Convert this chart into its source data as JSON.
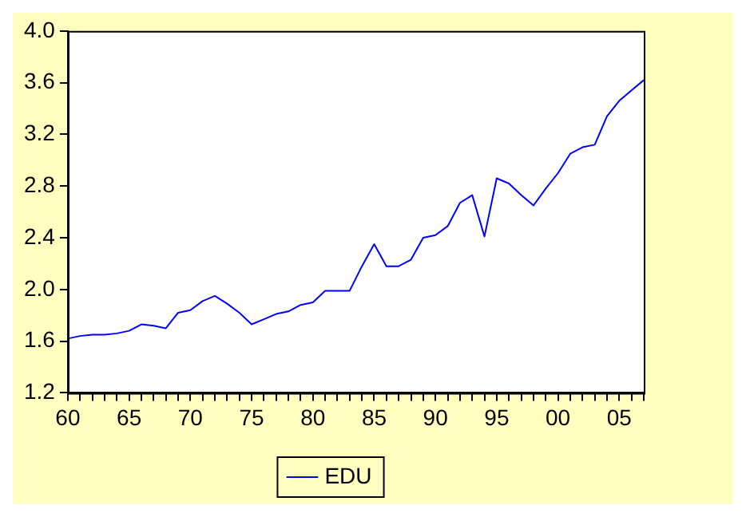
{
  "chart_data": {
    "type": "line",
    "x": [
      1960,
      1961,
      1962,
      1963,
      1964,
      1965,
      1966,
      1967,
      1968,
      1969,
      1970,
      1971,
      1972,
      1973,
      1974,
      1975,
      1976,
      1977,
      1978,
      1979,
      1980,
      1981,
      1982,
      1983,
      1984,
      1985,
      1986,
      1987,
      1988,
      1989,
      1990,
      1991,
      1992,
      1993,
      1994,
      1995,
      1996,
      1997,
      1998,
      1999,
      2000,
      2001,
      2002,
      2003,
      2004,
      2005,
      2006,
      2007
    ],
    "series": [
      {
        "name": "EDU",
        "color": "#0000ff",
        "values": [
          1.62,
          1.64,
          1.65,
          1.65,
          1.66,
          1.68,
          1.73,
          1.72,
          1.7,
          1.82,
          1.84,
          1.91,
          1.95,
          1.89,
          1.82,
          1.73,
          1.77,
          1.81,
          1.83,
          1.88,
          1.9,
          1.99,
          1.99,
          1.99,
          2.18,
          2.35,
          2.18,
          2.18,
          2.23,
          2.4,
          2.42,
          2.49,
          2.67,
          2.73,
          2.41,
          2.86,
          2.82,
          2.73,
          2.65,
          2.78,
          2.9,
          3.05,
          3.1,
          3.12,
          3.34,
          3.46,
          3.54,
          3.62
        ]
      }
    ],
    "xlim": [
      1960,
      2007
    ],
    "xticks": [
      {
        "value": 1960,
        "label": "60"
      },
      {
        "value": 1961,
        "label": null
      },
      {
        "value": 1962,
        "label": null
      },
      {
        "value": 1963,
        "label": null
      },
      {
        "value": 1964,
        "label": null
      },
      {
        "value": 1965,
        "label": "65"
      },
      {
        "value": 1966,
        "label": null
      },
      {
        "value": 1967,
        "label": null
      },
      {
        "value": 1968,
        "label": null
      },
      {
        "value": 1969,
        "label": null
      },
      {
        "value": 1970,
        "label": "70"
      },
      {
        "value": 1971,
        "label": null
      },
      {
        "value": 1972,
        "label": null
      },
      {
        "value": 1973,
        "label": null
      },
      {
        "value": 1974,
        "label": null
      },
      {
        "value": 1975,
        "label": "75"
      },
      {
        "value": 1976,
        "label": null
      },
      {
        "value": 1977,
        "label": null
      },
      {
        "value": 1978,
        "label": null
      },
      {
        "value": 1979,
        "label": null
      },
      {
        "value": 1980,
        "label": "80"
      },
      {
        "value": 1981,
        "label": null
      },
      {
        "value": 1982,
        "label": null
      },
      {
        "value": 1983,
        "label": null
      },
      {
        "value": 1984,
        "label": null
      },
      {
        "value": 1985,
        "label": "85"
      },
      {
        "value": 1986,
        "label": null
      },
      {
        "value": 1987,
        "label": null
      },
      {
        "value": 1988,
        "label": null
      },
      {
        "value": 1989,
        "label": null
      },
      {
        "value": 1990,
        "label": "90"
      },
      {
        "value": 1991,
        "label": null
      },
      {
        "value": 1992,
        "label": null
      },
      {
        "value": 1993,
        "label": null
      },
      {
        "value": 1994,
        "label": null
      },
      {
        "value": 1995,
        "label": "95"
      },
      {
        "value": 1996,
        "label": null
      },
      {
        "value": 1997,
        "label": null
      },
      {
        "value": 1998,
        "label": null
      },
      {
        "value": 1999,
        "label": null
      },
      {
        "value": 2000,
        "label": "00"
      },
      {
        "value": 2001,
        "label": null
      },
      {
        "value": 2002,
        "label": null
      },
      {
        "value": 2003,
        "label": null
      },
      {
        "value": 2004,
        "label": null
      },
      {
        "value": 2005,
        "label": "05"
      },
      {
        "value": 2006,
        "label": null
      },
      {
        "value": 2007,
        "label": null
      }
    ],
    "ylim": [
      1.2,
      4.0
    ],
    "yticks": [
      1.2,
      1.6,
      {
        "value": 2.0,
        "label": "2.0"
      },
      2.4,
      2.8,
      3.2,
      3.6,
      {
        "value": 4.0,
        "label": "4.0"
      }
    ],
    "grid": false,
    "legend": "bottom",
    "marker": "none",
    "line_style": "solid"
  }
}
